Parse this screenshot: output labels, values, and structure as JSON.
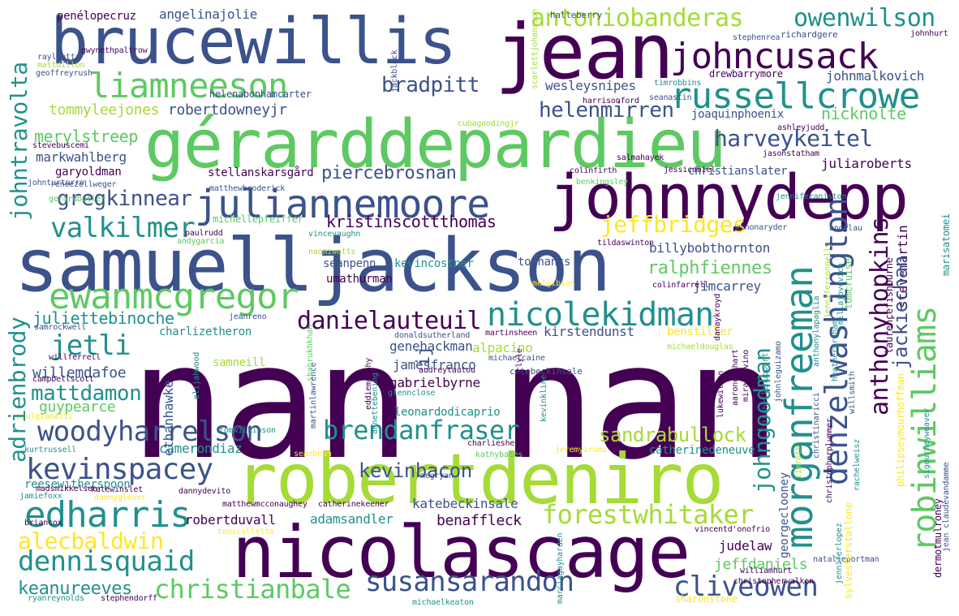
{
  "palette": {
    "dark_purple": "#440154",
    "indigo": "#3b528b",
    "teal": "#21908d",
    "green": "#5ec962",
    "lime": "#a5db36",
    "yellow": "#fde725"
  },
  "words": [
    {
      "text": "nan nan"
    },
    {
      "text": "robertdeniro"
    },
    {
      "text": "nicolascage"
    },
    {
      "text": "samuelljackson"
    },
    {
      "text": "gérarddepardieu"
    },
    {
      "text": "johnnydepp"
    },
    {
      "text": "brucewillis"
    },
    {
      "text": "jean"
    },
    {
      "text": "juliannemoore"
    },
    {
      "text": "nicolekidman"
    },
    {
      "text": "ewanmcgregor"
    },
    {
      "text": "russellcrowe"
    },
    {
      "text": "johncusack"
    },
    {
      "text": "liamneeson"
    },
    {
      "text": "antoniobanderas"
    },
    {
      "text": "owenwilson"
    },
    {
      "text": "edharris"
    },
    {
      "text": "woodyharrelson"
    },
    {
      "text": "kevinspacey"
    },
    {
      "text": "forestwhitaker"
    },
    {
      "text": "susansarandon"
    },
    {
      "text": "dennisquaid"
    },
    {
      "text": "alecbaldwin"
    },
    {
      "text": "christianbale"
    },
    {
      "text": "brendanfraser"
    },
    {
      "text": "valkilmer"
    },
    {
      "text": "danielauteuil"
    },
    {
      "text": "jeffbridges"
    },
    {
      "text": "cliveowen"
    },
    {
      "text": "harveykeitel"
    },
    {
      "text": "helenmirren"
    },
    {
      "text": "jetli"
    },
    {
      "text": "mattdamon"
    },
    {
      "text": "gregkinnear"
    },
    {
      "text": "sandrabullock"
    },
    {
      "text": "bradpitt"
    },
    {
      "text": "kevinbacon"
    },
    {
      "text": "piercebrosnan"
    },
    {
      "text": "ralphfiennes"
    },
    {
      "text": "kristinscottthomas"
    },
    {
      "text": "tommyleejones"
    },
    {
      "text": "robertdowneyjr"
    },
    {
      "text": "merylstreep"
    },
    {
      "text": "juliettebinoche"
    },
    {
      "text": "willemdafoe"
    },
    {
      "text": "nicknolte"
    },
    {
      "text": "jeffdaniels"
    },
    {
      "text": "keanureeves"
    },
    {
      "text": "katebeckinsale"
    },
    {
      "text": "benaffleck"
    },
    {
      "text": "adamsandler"
    },
    {
      "text": "markwahlberg"
    },
    {
      "text": "guypearce"
    },
    {
      "text": "camerondiaz"
    },
    {
      "text": "robertduvall"
    },
    {
      "text": "reesewitherspoon"
    },
    {
      "text": "gabrielbyrne"
    },
    {
      "text": "genehackman"
    },
    {
      "text": "juliaroberts"
    },
    {
      "text": "angelinajolie"
    },
    {
      "text": "wesleysnipes"
    },
    {
      "text": "johnmalkovich"
    },
    {
      "text": "billybobthornton"
    },
    {
      "text": "kirstendunst"
    },
    {
      "text": "jamesfranco"
    },
    {
      "text": "alpacino"
    },
    {
      "text": "jimcarrey"
    },
    {
      "text": "judelaw"
    },
    {
      "text": "christianslater"
    },
    {
      "text": "charlizetheron"
    },
    {
      "text": "leonardodicaprio"
    },
    {
      "text": "stellanskarsgård"
    },
    {
      "text": "tomhanks"
    },
    {
      "text": "kevincostner"
    },
    {
      "text": "seanpenn"
    },
    {
      "text": "umathurman"
    },
    {
      "text": "garyoldman"
    },
    {
      "text": "joaquinphoenix"
    },
    {
      "text": "benstiller"
    },
    {
      "text": "catherinedeneuve"
    },
    {
      "text": "samneill"
    },
    {
      "text": "michellepfeiffer"
    },
    {
      "text": "catebeckinsale"
    },
    {
      "text": "drewbarrymore"
    },
    {
      "text": "helenabonhamcarter"
    },
    {
      "text": "penélopecruz"
    },
    {
      "text": "sharonstone"
    },
    {
      "text": "christopherwalken"
    },
    {
      "text": "williamhurt"
    },
    {
      "text": "natalieportman"
    },
    {
      "text": "megryan"
    },
    {
      "text": "charliesheen"
    },
    {
      "text": "jasonstatham"
    },
    {
      "text": "jessicabiel"
    },
    {
      "text": "colinfirth"
    },
    {
      "text": "salmahayek"
    },
    {
      "text": "benkingsley"
    },
    {
      "text": "harrisonford"
    },
    {
      "text": "ashleyjudd"
    },
    {
      "text": "halleberry"
    },
    {
      "text": "richardgere"
    },
    {
      "text": "stephenrea"
    },
    {
      "text": "johnhurt"
    },
    {
      "text": "gwynethpaltrow"
    },
    {
      "text": "rayliotta"
    },
    {
      "text": "mattdillon"
    },
    {
      "text": "geoffreyrush"
    },
    {
      "text": "stevebuscemi"
    },
    {
      "text": "renéezellweger"
    },
    {
      "text": "johnturturro"
    },
    {
      "text": "gerardbutler"
    },
    {
      "text": "paulrudd"
    },
    {
      "text": "andygarcia"
    },
    {
      "text": "naomiwatts"
    },
    {
      "text": "vincevaughn"
    },
    {
      "text": "tildaswinton"
    },
    {
      "text": "winonaryder"
    },
    {
      "text": "jenniferaniston"
    },
    {
      "text": "andylau"
    },
    {
      "text": "colinfarrell"
    },
    {
      "text": "melgibson"
    },
    {
      "text": "jeanreno"
    },
    {
      "text": "samrockwell"
    },
    {
      "text": "donaldsutherland"
    },
    {
      "text": "martinsheen"
    },
    {
      "text": "michaeldouglas"
    },
    {
      "text": "willferrell"
    },
    {
      "text": "campbellscott"
    },
    {
      "text": "michaelcaine"
    },
    {
      "text": "glennclose"
    },
    {
      "text": "paulgiamatti"
    },
    {
      "text": "kurtrussell"
    },
    {
      "text": "madsmikkelsen"
    },
    {
      "text": "seanbean"
    },
    {
      "text": "jeremyirons"
    },
    {
      "text": "kathybates"
    },
    {
      "text": "jamiefoxx"
    },
    {
      "text": "katewinslet"
    },
    {
      "text": "dannyglover"
    },
    {
      "text": "dannydevito"
    },
    {
      "text": "matthewmcconaughey"
    },
    {
      "text": "catherinekeener"
    },
    {
      "text": "tonicollette"
    },
    {
      "text": "briancox"
    },
    {
      "text": "ryanreynolds"
    },
    {
      "text": "stephendorff"
    },
    {
      "text": "michaelkeaton"
    },
    {
      "text": "vincentd'onofrio"
    },
    {
      "text": "jackblack"
    },
    {
      "text": "scarlettjohansson"
    },
    {
      "text": "seanastin"
    },
    {
      "text": "timrobbins"
    },
    {
      "text": "cubagoodingjr"
    },
    {
      "text": "matthewbroderick"
    },
    {
      "text": "audreytautou"
    },
    {
      "text": "eddiemurphy"
    },
    {
      "text": "martinlawrence"
    },
    {
      "text": "isabellehuppert"
    },
    {
      "text": "johnleguizamo"
    },
    {
      "text": "lukewilson"
    },
    {
      "text": "danaykroyd"
    },
    {
      "text": "marisatomei"
    },
    {
      "text": "dermotmulroney"
    },
    {
      "text": "laurencefishburne"
    },
    {
      "text": "stevemartin"
    },
    {
      "text": "jackiechan"
    },
    {
      "text": "anthonyhopkins"
    },
    {
      "text": "johngoodman"
    },
    {
      "text": "georgeclooney"
    },
    {
      "text": "denzelwashington"
    },
    {
      "text": "morganfreeman"
    },
    {
      "text": "robinwilliams"
    },
    {
      "text": "johntravolta"
    },
    {
      "text": "adrienbrody"
    },
    {
      "text": "ethanhawke"
    },
    {
      "text": "ij"
    },
    {
      "text": "tomcruise"
    },
    {
      "text": "jean claudevandamme"
    },
    {
      "text": "sigourneyweaver"
    },
    {
      "text": "philipseymourhoffman"
    },
    {
      "text": "rachelweisz"
    },
    {
      "text": "christopherplummer"
    },
    {
      "text": "christinaricci"
    },
    {
      "text": "anthonylapaglia"
    },
    {
      "text": "aaroneckhart"
    },
    {
      "text": "mirasorvino"
    },
    {
      "text": "heathergraham"
    },
    {
      "text": "millajovovich"
    },
    {
      "text": "willsmith"
    },
    {
      "text": "jenniferconnelly"
    },
    {
      "text": "jenniferlopez"
    },
    {
      "text": "sylvesterstallone"
    },
    {
      "text": "marciagayharden"
    },
    {
      "text": "kevinkline"
    },
    {
      "text": "robertcarlyle"
    },
    {
      "text": "annettebening"
    },
    {
      "text": "shahrukhkhan"
    },
    {
      "text": "elijahwood"
    },
    {
      "text": "timroth"
    },
    {
      "text": "tomwilkinson"
    }
  ]
}
